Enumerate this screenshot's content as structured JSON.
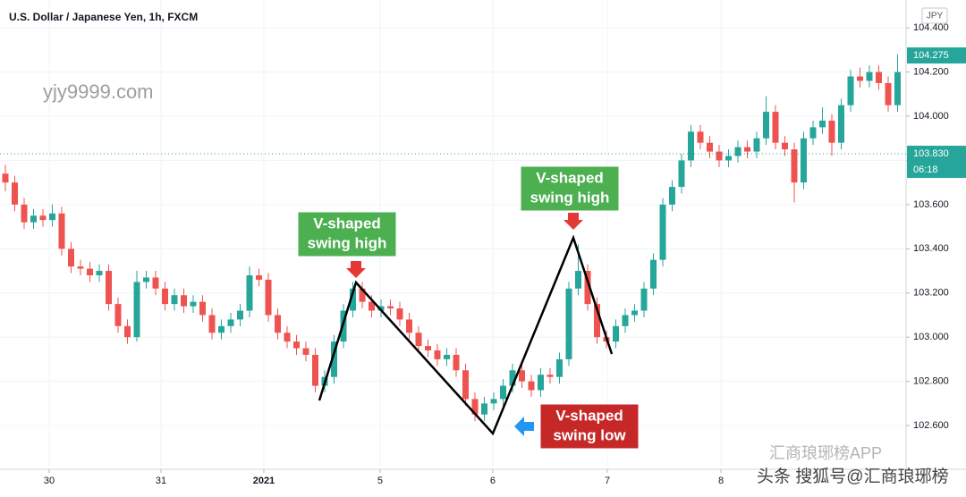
{
  "chart_data": {
    "type": "candlestick",
    "title": "U.S. Dollar / Japanese Yen, 1h, FXCM",
    "watermark": "yjy9999.com",
    "currency": "JPY",
    "up_color": "#26a69a",
    "down_color": "#ef5350",
    "grid": true,
    "ylim": [
      102.402,
      104.526
    ],
    "yticks": [
      {
        "value": 104.4,
        "label": "104.400"
      },
      {
        "value": 104.2,
        "label": "104.200"
      },
      {
        "value": 104.0,
        "label": "104.000"
      },
      {
        "value": 103.8,
        "label": "103.800"
      },
      {
        "value": 103.6,
        "label": "103.600"
      },
      {
        "value": 103.4,
        "label": "103.400"
      },
      {
        "value": 103.2,
        "label": "103.200"
      },
      {
        "value": 103.0,
        "label": "103.000"
      },
      {
        "value": 102.8,
        "label": "102.800"
      },
      {
        "value": 102.6,
        "label": "102.600"
      }
    ],
    "xticks": [
      {
        "value": 4.67,
        "label": "30"
      },
      {
        "value": 16.57,
        "label": "31"
      },
      {
        "value": 27.52,
        "label": "2021"
      },
      {
        "value": 39.9,
        "label": "5"
      },
      {
        "value": 51.9,
        "label": "6"
      },
      {
        "value": 64.1,
        "label": "7"
      },
      {
        "value": 76.2,
        "label": "8"
      }
    ],
    "price_labels": [
      {
        "value": 104.275,
        "label": "104.275"
      },
      {
        "value": 103.83,
        "label": "103.830",
        "countdown": "06:18"
      }
    ],
    "ohlc": [
      [
        103.74,
        103.78,
        103.66,
        103.7
      ],
      [
        103.7,
        103.73,
        103.57,
        103.6
      ],
      [
        103.6,
        103.63,
        103.49,
        103.52
      ],
      [
        103.52,
        103.58,
        103.49,
        103.55
      ],
      [
        103.55,
        103.58,
        103.5,
        103.53
      ],
      [
        103.53,
        103.6,
        103.5,
        103.56
      ],
      [
        103.56,
        103.59,
        103.37,
        103.4
      ],
      [
        103.4,
        103.43,
        103.29,
        103.32
      ],
      [
        103.32,
        103.35,
        103.28,
        103.31
      ],
      [
        103.31,
        103.34,
        103.25,
        103.28
      ],
      [
        103.28,
        103.33,
        103.25,
        103.3
      ],
      [
        103.3,
        103.33,
        103.12,
        103.15
      ],
      [
        103.15,
        103.18,
        103.02,
        103.05
      ],
      [
        103.05,
        103.08,
        102.97,
        103.0
      ],
      [
        103.0,
        103.3,
        102.98,
        103.25
      ],
      [
        103.25,
        103.3,
        103.22,
        103.27
      ],
      [
        103.27,
        103.3,
        103.19,
        103.22
      ],
      [
        103.22,
        103.25,
        103.12,
        103.15
      ],
      [
        103.15,
        103.22,
        103.12,
        103.19
      ],
      [
        103.19,
        103.22,
        103.11,
        103.14
      ],
      [
        103.14,
        103.19,
        103.11,
        103.16
      ],
      [
        103.16,
        103.19,
        103.07,
        103.1
      ],
      [
        103.1,
        103.13,
        102.99,
        103.02
      ],
      [
        103.02,
        103.08,
        102.99,
        103.05
      ],
      [
        103.05,
        103.11,
        103.02,
        103.08
      ],
      [
        103.08,
        103.15,
        103.05,
        103.12
      ],
      [
        103.12,
        103.32,
        103.09,
        103.28
      ],
      [
        103.28,
        103.31,
        103.23,
        103.26
      ],
      [
        103.26,
        103.29,
        103.07,
        103.1
      ],
      [
        103.1,
        103.13,
        102.99,
        103.02
      ],
      [
        103.02,
        103.05,
        102.95,
        102.98
      ],
      [
        102.98,
        103.01,
        102.92,
        102.95
      ],
      [
        102.95,
        102.98,
        102.89,
        102.92
      ],
      [
        102.92,
        102.95,
        102.75,
        102.78
      ],
      [
        102.78,
        102.85,
        102.75,
        102.82
      ],
      [
        102.82,
        103.01,
        102.79,
        102.98
      ],
      [
        102.98,
        103.15,
        102.95,
        103.12
      ],
      [
        103.12,
        103.25,
        103.09,
        103.22
      ],
      [
        103.22,
        103.25,
        103.13,
        103.16
      ],
      [
        103.16,
        103.19,
        103.09,
        103.12
      ],
      [
        103.12,
        103.17,
        103.09,
        103.14
      ],
      [
        103.14,
        103.17,
        103.1,
        103.13
      ],
      [
        103.13,
        103.16,
        103.05,
        103.08
      ],
      [
        103.08,
        103.11,
        102.99,
        103.02
      ],
      [
        103.02,
        103.05,
        102.93,
        102.96
      ],
      [
        102.96,
        102.99,
        102.91,
        102.94
      ],
      [
        102.94,
        102.97,
        102.87,
        102.9
      ],
      [
        102.9,
        102.95,
        102.87,
        102.92
      ],
      [
        102.92,
        102.95,
        102.82,
        102.85
      ],
      [
        102.85,
        102.88,
        102.69,
        102.72
      ],
      [
        102.72,
        102.75,
        102.62,
        102.65
      ],
      [
        102.65,
        102.73,
        102.62,
        102.7
      ],
      [
        102.7,
        102.75,
        102.67,
        102.72
      ],
      [
        102.72,
        102.81,
        102.69,
        102.78
      ],
      [
        102.78,
        102.88,
        102.75,
        102.85
      ],
      [
        102.85,
        102.88,
        102.77,
        102.8
      ],
      [
        102.8,
        102.83,
        102.73,
        102.76
      ],
      [
        102.76,
        102.86,
        102.73,
        102.83
      ],
      [
        102.83,
        102.86,
        102.79,
        102.82
      ],
      [
        102.82,
        102.93,
        102.79,
        102.9
      ],
      [
        102.9,
        103.25,
        102.87,
        103.22
      ],
      [
        103.22,
        103.42,
        103.19,
        103.3
      ],
      [
        103.3,
        103.33,
        103.12,
        103.15
      ],
      [
        103.15,
        103.18,
        102.97,
        103.0
      ],
      [
        103.0,
        103.03,
        102.95,
        102.98
      ],
      [
        102.98,
        103.08,
        102.95,
        103.05
      ],
      [
        103.05,
        103.13,
        103.02,
        103.1
      ],
      [
        103.1,
        103.15,
        103.07,
        103.12
      ],
      [
        103.12,
        103.25,
        103.09,
        103.22
      ],
      [
        103.22,
        103.38,
        103.19,
        103.35
      ],
      [
        103.35,
        103.63,
        103.32,
        103.6
      ],
      [
        103.6,
        103.71,
        103.57,
        103.68
      ],
      [
        103.68,
        103.83,
        103.65,
        103.8
      ],
      [
        103.8,
        103.96,
        103.77,
        103.93
      ],
      [
        103.93,
        103.96,
        103.85,
        103.88
      ],
      [
        103.88,
        103.91,
        103.81,
        103.84
      ],
      [
        103.84,
        103.87,
        103.77,
        103.8
      ],
      [
        103.8,
        103.85,
        103.77,
        103.82
      ],
      [
        103.82,
        103.89,
        103.79,
        103.86
      ],
      [
        103.86,
        103.89,
        103.81,
        103.84
      ],
      [
        103.84,
        103.93,
        103.81,
        103.9
      ],
      [
        103.9,
        104.09,
        103.87,
        104.02
      ],
      [
        104.02,
        104.05,
        103.85,
        103.88
      ],
      [
        103.88,
        103.91,
        103.82,
        103.85
      ],
      [
        103.85,
        103.88,
        103.61,
        103.7
      ],
      [
        103.7,
        103.93,
        103.67,
        103.9
      ],
      [
        103.9,
        103.98,
        103.87,
        103.95
      ],
      [
        103.95,
        104.04,
        103.92,
        103.98
      ],
      [
        103.98,
        104.01,
        103.82,
        103.88
      ],
      [
        103.88,
        104.08,
        103.85,
        104.05
      ],
      [
        104.05,
        104.21,
        104.02,
        104.18
      ],
      [
        104.18,
        104.22,
        104.13,
        104.16
      ],
      [
        104.16,
        104.23,
        104.13,
        104.2
      ],
      [
        104.2,
        104.23,
        104.12,
        104.15
      ],
      [
        104.15,
        104.18,
        104.02,
        104.05
      ],
      [
        104.05,
        104.28,
        104.02,
        104.2
      ]
    ],
    "annotations": [
      {
        "lines": [
          "V-shaped",
          "swing high"
        ],
        "color": "#4caf50"
      },
      {
        "lines": [
          "V-shaped",
          "swing high"
        ],
        "color": "#4caf50"
      },
      {
        "lines": [
          "V-shaped",
          "swing low"
        ],
        "color": "#c62828"
      }
    ],
    "source_marks": [
      "汇商琅琊榜APP",
      "头条 搜狐号@汇商琅琊榜"
    ]
  }
}
